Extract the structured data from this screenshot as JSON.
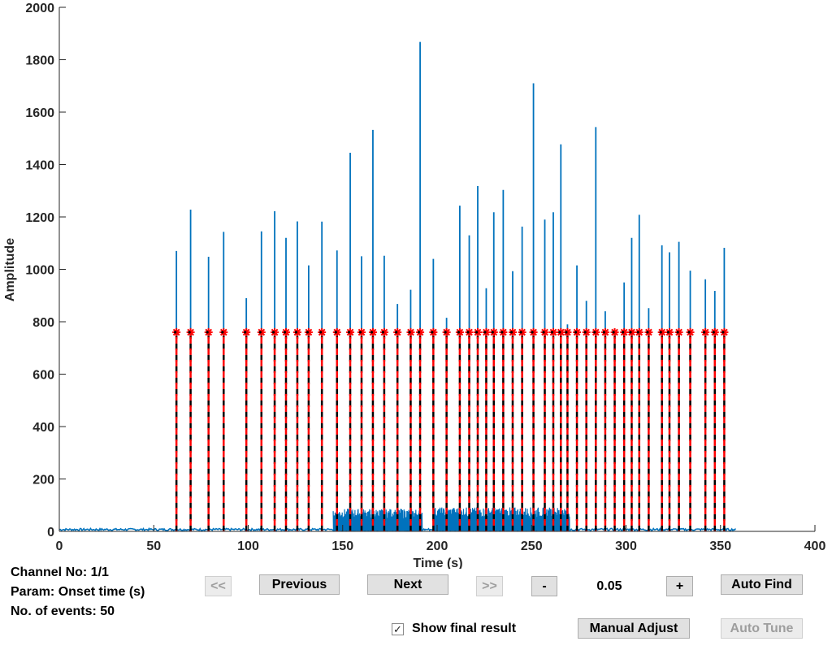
{
  "chart_data": {
    "type": "line",
    "title": "",
    "xlabel": "Time (s)",
    "ylabel": "Amplitude",
    "xlim": [
      0,
      400
    ],
    "ylim": [
      0,
      2000
    ],
    "xticks": [
      0,
      50,
      100,
      150,
      200,
      250,
      300,
      350,
      400
    ],
    "yticks": [
      0,
      200,
      400,
      600,
      800,
      1000,
      1200,
      1400,
      1600,
      1800,
      2000
    ],
    "signal_color": "#0072bd",
    "marker_color": "#ff0000",
    "threshold": 760,
    "baseline_start": 0,
    "baseline_end": 358,
    "baseline_level": 8,
    "dense_segments": [
      {
        "start": 145,
        "end": 192,
        "level": 75
      },
      {
        "start": 198,
        "end": 270,
        "level": 80
      }
    ],
    "spikes": [
      {
        "t": 62,
        "a": 1070
      },
      {
        "t": 69.5,
        "a": 1228
      },
      {
        "t": 79,
        "a": 1048
      },
      {
        "t": 87,
        "a": 1143
      },
      {
        "t": 99,
        "a": 890
      },
      {
        "t": 107,
        "a": 1145
      },
      {
        "t": 114,
        "a": 1222
      },
      {
        "t": 120,
        "a": 1120
      },
      {
        "t": 126,
        "a": 1183
      },
      {
        "t": 132,
        "a": 1015
      },
      {
        "t": 139,
        "a": 1182
      },
      {
        "t": 147,
        "a": 1072
      },
      {
        "t": 154,
        "a": 1445
      },
      {
        "t": 160,
        "a": 1050
      },
      {
        "t": 166,
        "a": 1532
      },
      {
        "t": 172,
        "a": 1052
      },
      {
        "t": 179,
        "a": 868
      },
      {
        "t": 186,
        "a": 922
      },
      {
        "t": 191,
        "a": 1868
      },
      {
        "t": 198,
        "a": 1040
      },
      {
        "t": 205,
        "a": 815
      },
      {
        "t": 212,
        "a": 1243
      },
      {
        "t": 217,
        "a": 1130
      },
      {
        "t": 221.5,
        "a": 1318
      },
      {
        "t": 226,
        "a": 928
      },
      {
        "t": 230,
        "a": 1218
      },
      {
        "t": 235,
        "a": 1303
      },
      {
        "t": 240,
        "a": 993
      },
      {
        "t": 245,
        "a": 1163
      },
      {
        "t": 251,
        "a": 1710
      },
      {
        "t": 257,
        "a": 1190
      },
      {
        "t": 261.5,
        "a": 1218
      },
      {
        "t": 265.5,
        "a": 1477
      },
      {
        "t": 269,
        "a": 790
      },
      {
        "t": 274,
        "a": 1015
      },
      {
        "t": 279,
        "a": 880
      },
      {
        "t": 284,
        "a": 1543
      },
      {
        "t": 289,
        "a": 840
      },
      {
        "t": 294,
        "a": 760
      },
      {
        "t": 299,
        "a": 950
      },
      {
        "t": 303,
        "a": 1120
      },
      {
        "t": 307,
        "a": 1208
      },
      {
        "t": 312,
        "a": 852
      },
      {
        "t": 319,
        "a": 1092
      },
      {
        "t": 323,
        "a": 1065
      },
      {
        "t": 328,
        "a": 1105
      },
      {
        "t": 334,
        "a": 995
      },
      {
        "t": 342,
        "a": 962
      },
      {
        "t": 347,
        "a": 918
      },
      {
        "t": 352,
        "a": 1082
      }
    ],
    "events": [
      62,
      69.5,
      79,
      87,
      99,
      107,
      114,
      120,
      126,
      132,
      139,
      147,
      154,
      160,
      166,
      172,
      179,
      186,
      191,
      198,
      205,
      212,
      217,
      221.5,
      226,
      230,
      235,
      240,
      245,
      251,
      257,
      261.5,
      265.5,
      269,
      274,
      279,
      284,
      289,
      294,
      299,
      303,
      307,
      312,
      319,
      323,
      328,
      334,
      342,
      347,
      352
    ]
  },
  "info": {
    "channel": "Channel No: 1/1",
    "param": "Param: Onset time (s)",
    "events": "No. of events: 50"
  },
  "controls": {
    "first_label": "<<",
    "previous_label": "Previous",
    "next_label": "Next",
    "last_label": ">>",
    "minus_label": "-",
    "step_value": "0.05",
    "plus_label": "+",
    "auto_find_label": "Auto Find",
    "show_final_label": "Show final result",
    "show_final_checked": true,
    "manual_adjust_label": "Manual Adjust",
    "auto_tune_label": "Auto Tune"
  }
}
